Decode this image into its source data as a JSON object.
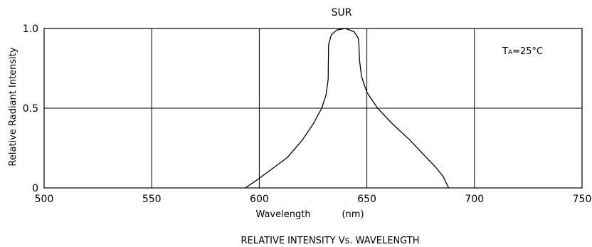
{
  "chart_data": {
    "type": "line",
    "title": "SUR",
    "caption": "RELATIVE INTENSITY Vs. WAVELENGTH",
    "annotation": "Tₐ=25°C",
    "annotation_parts": {
      "main": "T",
      "sub": "A",
      "rest": "=25°C"
    },
    "xlabel": {
      "text": "Wavelength",
      "unit": "(nm)"
    },
    "ylabel": "Relative Radiant Intensity",
    "xlim": [
      500,
      750
    ],
    "ylim": [
      0,
      1.0
    ],
    "x_ticks": [
      {
        "value": 500,
        "label": "500"
      },
      {
        "value": 550,
        "label": "550"
      },
      {
        "value": 600,
        "label": "600"
      },
      {
        "value": 650,
        "label": "650"
      },
      {
        "value": 700,
        "label": "700"
      },
      {
        "value": 750,
        "label": "750"
      }
    ],
    "y_ticks": [
      {
        "value": 0,
        "label": "0"
      },
      {
        "value": 0.5,
        "label": "0.5"
      },
      {
        "value": 1.0,
        "label": "1.0"
      }
    ],
    "grid": true,
    "grid_color": "#000000",
    "series": [
      {
        "color": "#000000",
        "x": [
          593.5,
          600,
          606,
          613,
          620,
          625,
          629,
          631,
          632,
          632.2,
          633.5,
          636,
          640,
          644,
          646,
          646.3,
          646.6,
          647.5,
          650,
          655,
          662,
          670,
          677,
          682,
          685.5,
          688
        ],
        "y": [
          0,
          0.06,
          0.12,
          0.19,
          0.3,
          0.4,
          0.5,
          0.58,
          0.68,
          0.9,
          0.96,
          0.99,
          1.0,
          0.98,
          0.94,
          0.9,
          0.8,
          0.7,
          0.6,
          0.5,
          0.4,
          0.3,
          0.2,
          0.13,
          0.07,
          0
        ]
      }
    ]
  }
}
